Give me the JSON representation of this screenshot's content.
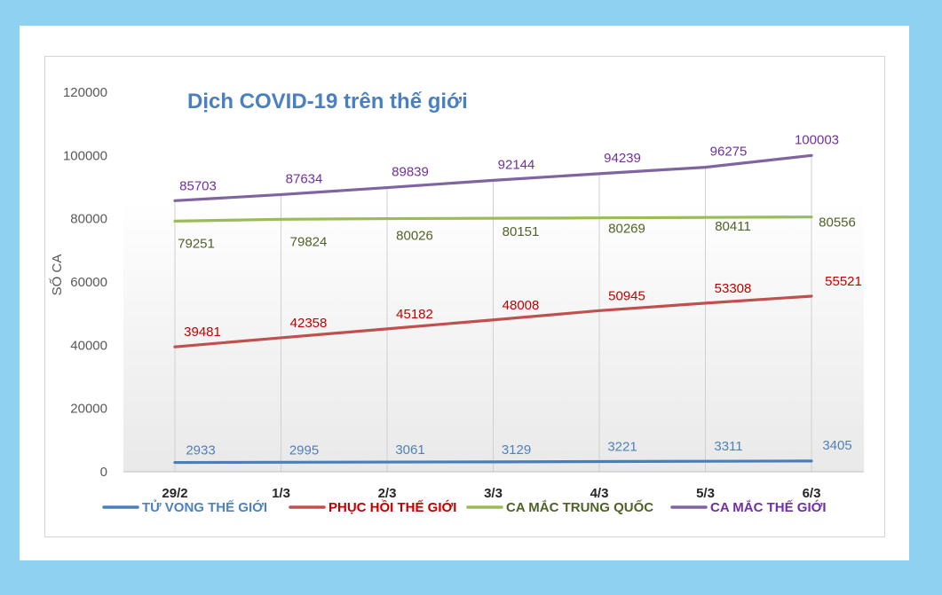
{
  "chart_data": {
    "type": "line",
    "title": "Dịch COVID-19 trên thế giới",
    "ylabel": "SỐ CA",
    "xlabel": "",
    "ylim": [
      0,
      120000
    ],
    "yticks": [
      0,
      20000,
      40000,
      60000,
      80000,
      100000,
      120000
    ],
    "categories": [
      "29/2",
      "1/3",
      "2/3",
      "3/3",
      "4/3",
      "5/3",
      "6/3"
    ],
    "grid": "vertical",
    "legend": "bottom",
    "series": [
      {
        "name": "TỬ VONG THẾ GIỚI",
        "color": "#4a7ebb",
        "label_color": "#4f81bd",
        "values": [
          2933,
          2995,
          3061,
          3129,
          3221,
          3311,
          3405
        ]
      },
      {
        "name": "PHỤC HỒI THẾ GIỚI",
        "color": "#c0504d",
        "label_color": "#c00000",
        "values": [
          39481,
          42358,
          45182,
          48008,
          50945,
          53308,
          55521
        ]
      },
      {
        "name": "CA MẮC TRUNG QUỐC",
        "color": "#9bbb59",
        "label_color": "#4f6228",
        "values": [
          79251,
          79824,
          80026,
          80151,
          80269,
          80411,
          80556
        ]
      },
      {
        "name": "CA MẮC THẾ GIỚI",
        "color": "#8064a2",
        "label_color": "#7030a0",
        "values": [
          85703,
          87634,
          89839,
          92144,
          94239,
          96275,
          100003
        ]
      }
    ]
  }
}
